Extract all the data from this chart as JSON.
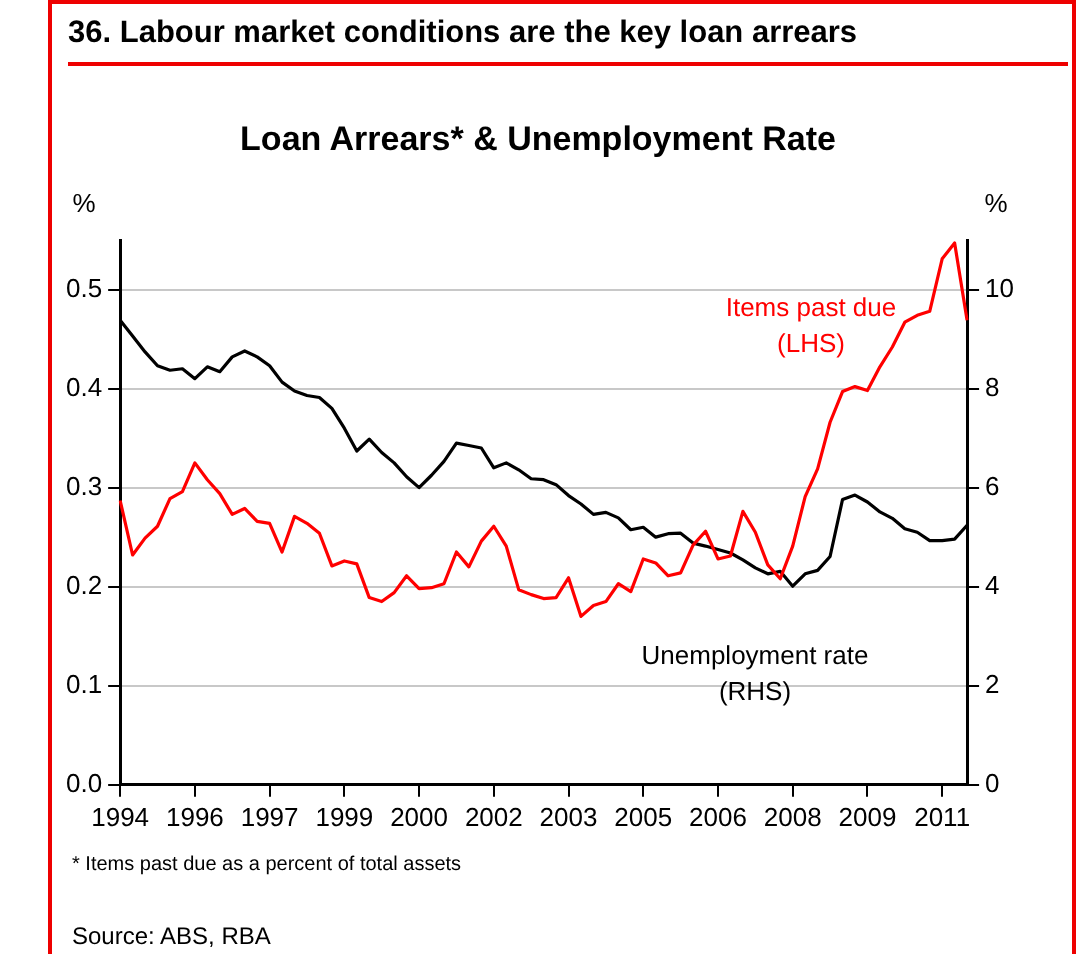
{
  "chart_data": {
    "type": "line",
    "title": "36. Labour market conditions are the key loan arrears",
    "subtitle": "Loan Arrears* & Unemployment Rate",
    "ylabel": "%",
    "y2label": "%",
    "categories": [
      "1994",
      null,
      null,
      null,
      null,
      null,
      "1996",
      null,
      null,
      null,
      null,
      null,
      "1997",
      null,
      null,
      null,
      null,
      null,
      "1999",
      null,
      null,
      null,
      null,
      null,
      "2000",
      null,
      null,
      null,
      null,
      null,
      "2002",
      null,
      null,
      null,
      null,
      null,
      "2003",
      null,
      null,
      null,
      null,
      null,
      "2005",
      null,
      null,
      null,
      null,
      null,
      "2006",
      null,
      null,
      null,
      null,
      null,
      "2008",
      null,
      null,
      null,
      null,
      null,
      "2009",
      null,
      null,
      null,
      null,
      null,
      "2011",
      null,
      null
    ],
    "series": [
      {
        "name": "Items past due\n(LHS)",
        "color": "#ff0000",
        "values": [
          0.287,
          0.232,
          0.249,
          0.261,
          0.289,
          0.296,
          0.325,
          0.308,
          0.294,
          0.273,
          0.279,
          0.266,
          0.264,
          0.235,
          0.271,
          0.264,
          0.254,
          0.221,
          0.226,
          0.223,
          0.189,
          0.185,
          0.194,
          0.211,
          0.198,
          0.199,
          0.203,
          0.235,
          0.22,
          0.246,
          0.261,
          0.241,
          0.197,
          0.192,
          0.188,
          0.189,
          0.209,
          0.17,
          0.181,
          0.185,
          0.203,
          0.195,
          0.228,
          0.224,
          0.211,
          0.214,
          0.242,
          0.256,
          0.228,
          0.231,
          0.276,
          0.255,
          0.222,
          0.208,
          0.241,
          0.291,
          0.319,
          0.366,
          0.397,
          0.402,
          0.398,
          0.422,
          0.442,
          0.467,
          0.474,
          0.478,
          0.531,
          0.547,
          0.469
        ]
      },
      {
        "name": "Unemployment rate\n(RHS)",
        "color": "#000000",
        "axis": "y2",
        "values": [
          9.38,
          9.06,
          8.74,
          8.46,
          8.37,
          8.4,
          8.2,
          8.44,
          8.34,
          8.64,
          8.76,
          8.64,
          8.46,
          8.13,
          7.95,
          7.86,
          7.82,
          7.6,
          7.2,
          6.74,
          6.98,
          6.71,
          6.5,
          6.22,
          6.0,
          6.25,
          6.53,
          6.9,
          6.85,
          6.8,
          6.4,
          6.5,
          6.36,
          6.18,
          6.16,
          6.06,
          5.84,
          5.67,
          5.46,
          5.5,
          5.39,
          5.15,
          5.2,
          5.0,
          5.07,
          5.08,
          4.88,
          4.82,
          4.75,
          4.68,
          4.54,
          4.38,
          4.26,
          4.31,
          4.01,
          4.26,
          4.33,
          4.61,
          5.76,
          5.85,
          5.71,
          5.51,
          5.38,
          5.17,
          5.1,
          4.93,
          4.93,
          4.96,
          5.24
        ]
      }
    ],
    "ylim": [
      0,
      0.55
    ],
    "yticks": [
      {
        "value": 0,
        "label": "0.0"
      },
      0.1,
      0.2,
      0.3,
      0.4,
      0.5
    ],
    "y2lim": [
      0,
      11
    ],
    "y2ticks": [
      0,
      2,
      4,
      6,
      8,
      10
    ],
    "grid": "y",
    "legend": false,
    "annotations": [
      "* Items past due as a percent of total assets",
      "Source: ABS, RBA"
    ]
  }
}
